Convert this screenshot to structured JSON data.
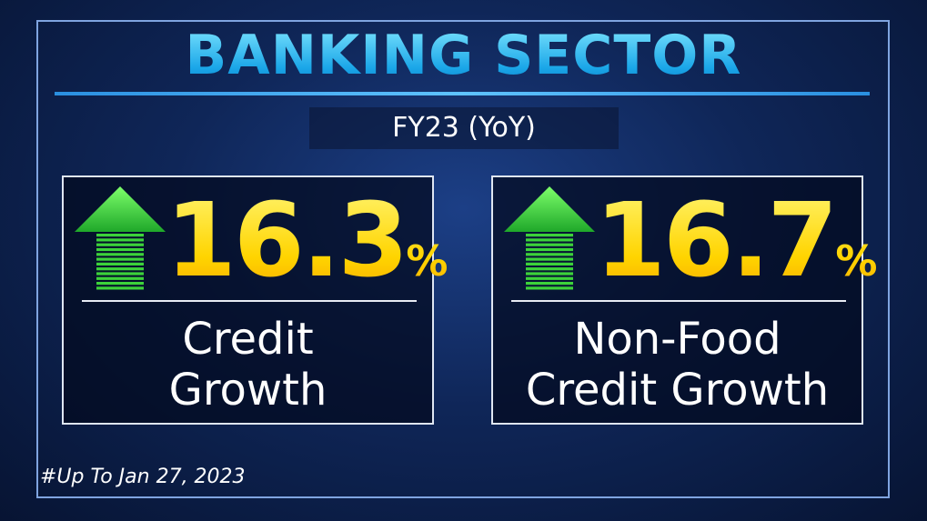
{
  "title": "BANKING SECTOR",
  "subtitle": "FY23 (YoY)",
  "cards": [
    {
      "value": 16.3,
      "unit": "%",
      "label_lines": [
        "Credit",
        "Growth"
      ]
    },
    {
      "value": 16.7,
      "unit": "%",
      "label_lines": [
        "Non-Food",
        "Credit Growth"
      ]
    }
  ],
  "footnote": "#Up To Jan 27, 2023"
}
